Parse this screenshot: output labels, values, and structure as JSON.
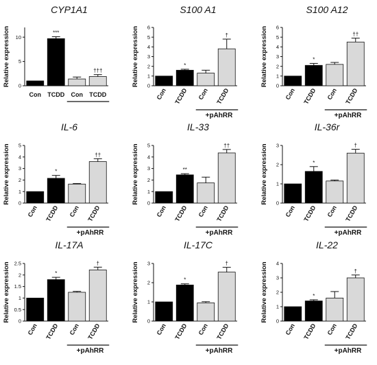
{
  "chart_data": [
    {
      "type": "bar",
      "title": "CYP1A1",
      "ylabel": "Relative expression",
      "ylim": [
        0,
        12
      ],
      "yticks": [
        0,
        5,
        10
      ],
      "categories": [
        "Con",
        "TCDD",
        "Con",
        "TCDD"
      ],
      "values": [
        1.0,
        9.7,
        1.4,
        1.9
      ],
      "errors": [
        0,
        0.4,
        0.4,
        0.4
      ],
      "significance": [
        "",
        "***",
        "",
        "†††"
      ],
      "group_label": "+pAhRR",
      "bar_colors": [
        "#000000",
        "#000000",
        "#d9d9d9",
        "#d9d9d9"
      ]
    },
    {
      "type": "bar",
      "title": "S100 A1",
      "ylabel": "Relative expression",
      "ylim": [
        0,
        6
      ],
      "yticks": [
        0,
        1,
        2,
        3,
        4,
        5,
        6
      ],
      "categories": [
        "Con",
        "TCDD",
        "Con",
        "TCDD"
      ],
      "values": [
        1.0,
        1.6,
        1.3,
        3.8
      ],
      "errors": [
        0,
        0.1,
        0.3,
        1.0
      ],
      "significance": [
        "",
        "*",
        "",
        "†"
      ],
      "group_label": "+pAhRR",
      "bar_colors": [
        "#000000",
        "#000000",
        "#d9d9d9",
        "#d9d9d9"
      ]
    },
    {
      "type": "bar",
      "title": "S100 A12",
      "ylabel": "Relative expression",
      "ylim": [
        0,
        6
      ],
      "yticks": [
        0,
        1,
        2,
        3,
        4,
        5,
        6
      ],
      "categories": [
        "Con",
        "TCDD",
        "Con",
        "TCDD"
      ],
      "values": [
        1.0,
        2.1,
        2.2,
        4.5
      ],
      "errors": [
        0,
        0.2,
        0.2,
        0.4
      ],
      "significance": [
        "",
        "*",
        "",
        "††"
      ],
      "group_label": "+pAhRR",
      "bar_colors": [
        "#000000",
        "#000000",
        "#d9d9d9",
        "#d9d9d9"
      ]
    },
    {
      "type": "bar",
      "title": "IL-6",
      "ylabel": "Relative expression",
      "ylim": [
        0,
        5
      ],
      "yticks": [
        0,
        1,
        2,
        3,
        4,
        5
      ],
      "categories": [
        "Con",
        "TCDD",
        "Con",
        "TCDD"
      ],
      "values": [
        1.0,
        2.15,
        1.65,
        3.6
      ],
      "errors": [
        0,
        0.25,
        0.05,
        0.25
      ],
      "significance": [
        "",
        "*",
        "",
        "††"
      ],
      "group_label": "+pAhRR",
      "bar_colors": [
        "#000000",
        "#000000",
        "#d9d9d9",
        "#d9d9d9"
      ]
    },
    {
      "type": "bar",
      "title": "IL-33",
      "ylabel": "Relative expression",
      "ylim": [
        0,
        5
      ],
      "yticks": [
        0,
        1,
        2,
        3,
        4,
        5
      ],
      "categories": [
        "Con",
        "TCDD",
        "Con",
        "TCDD"
      ],
      "values": [
        1.0,
        2.45,
        1.75,
        4.35
      ],
      "errors": [
        0,
        0.1,
        0.5,
        0.3
      ],
      "significance": [
        "",
        "**",
        "",
        "††"
      ],
      "group_label": "+pAhRR",
      "bar_colors": [
        "#000000",
        "#000000",
        "#d9d9d9",
        "#d9d9d9"
      ]
    },
    {
      "type": "bar",
      "title": "IL-36r",
      "ylabel": "Relative expression",
      "ylim": [
        0,
        3
      ],
      "yticks": [
        0,
        1,
        2,
        3
      ],
      "categories": [
        "Con",
        "TCDD",
        "Con",
        "TCDD"
      ],
      "values": [
        1.0,
        1.65,
        1.15,
        2.6
      ],
      "errors": [
        0,
        0.25,
        0.05,
        0.2
      ],
      "significance": [
        "",
        "*",
        "",
        "†"
      ],
      "group_label": "+pAhRR",
      "bar_colors": [
        "#000000",
        "#000000",
        "#d9d9d9",
        "#d9d9d9"
      ]
    },
    {
      "type": "bar",
      "title": "IL-17A",
      "ylabel": "Relative expression",
      "ylim": [
        0,
        2.5
      ],
      "yticks": [
        0,
        0.5,
        1,
        1.5,
        2,
        2.5
      ],
      "categories": [
        "Con",
        "TCDD",
        "Con",
        "TCDD"
      ],
      "values": [
        1.0,
        1.8,
        1.25,
        2.22
      ],
      "errors": [
        0,
        0.1,
        0.04,
        0.12
      ],
      "significance": [
        "",
        "*",
        "",
        "†"
      ],
      "group_label": "+pAhRR",
      "bar_colors": [
        "#000000",
        "#000000",
        "#d9d9d9",
        "#d9d9d9"
      ]
    },
    {
      "type": "bar",
      "title": "IL-17C",
      "ylabel": "Relative expression",
      "ylim": [
        0,
        3
      ],
      "yticks": [
        0,
        1,
        2,
        3
      ],
      "categories": [
        "Con",
        "TCDD",
        "Con",
        "TCDD"
      ],
      "values": [
        1.0,
        1.88,
        0.95,
        2.55
      ],
      "errors": [
        0,
        0.06,
        0.06,
        0.25
      ],
      "significance": [
        "",
        "*",
        "",
        "†"
      ],
      "group_label": "+pAhRR",
      "bar_colors": [
        "#000000",
        "#000000",
        "#d9d9d9",
        "#d9d9d9"
      ]
    },
    {
      "type": "bar",
      "title": "IL-22",
      "ylabel": "Relative expression",
      "ylim": [
        0,
        4
      ],
      "yticks": [
        0,
        1,
        2,
        3,
        4
      ],
      "categories": [
        "Con",
        "TCDD",
        "Con",
        "TCDD"
      ],
      "values": [
        1.0,
        1.4,
        1.6,
        3.0
      ],
      "errors": [
        0,
        0.08,
        0.45,
        0.2
      ],
      "significance": [
        "",
        "*",
        "",
        "†"
      ],
      "group_label": "+pAhRR",
      "bar_colors": [
        "#000000",
        "#000000",
        "#d9d9d9",
        "#d9d9d9"
      ]
    }
  ]
}
